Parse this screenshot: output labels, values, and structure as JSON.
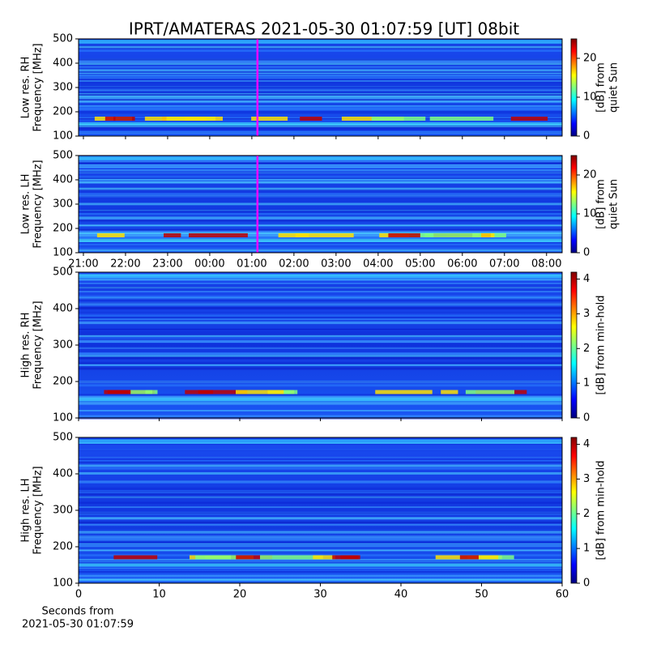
{
  "title": "IPRT/AMATERAS 2021-05-30 01:07:59 [UT]   08bit",
  "chart_data": [
    {
      "type": "spectrogram",
      "ylabel": [
        "Low res. RH",
        "Frequency [MHz]"
      ],
      "ylim": [
        100,
        500
      ],
      "yticks": [
        100,
        200,
        300,
        400,
        500
      ],
      "xlim": [
        20.885,
        32.37
      ],
      "sharex": true,
      "marker": 25.133,
      "marker_color": "#ff00ff",
      "colorbar": {
        "label": [
          "[dB] from",
          "quiet Sun"
        ],
        "lim": [
          0,
          25
        ],
        "ticks": [
          0,
          10,
          20
        ]
      }
    },
    {
      "type": "spectrogram",
      "ylabel": [
        "Low res. LH",
        "Frequency [MHz]"
      ],
      "ylim": [
        100,
        500
      ],
      "yticks": [
        100,
        200,
        300,
        400,
        500
      ],
      "xlim": [
        20.885,
        32.37
      ],
      "marker": 25.133,
      "marker_color": "#ff00ff",
      "xticks": [
        {
          "value": 21,
          "label": "21:00"
        },
        {
          "value": 22,
          "label": "22:00"
        },
        {
          "value": 23,
          "label": "23:00"
        },
        {
          "value": 24,
          "label": "00:00"
        },
        {
          "value": 25,
          "label": "01:00"
        },
        {
          "value": 26,
          "label": "02:00"
        },
        {
          "value": 27,
          "label": "03:00"
        },
        {
          "value": 28,
          "label": "04:00"
        },
        {
          "value": 29,
          "label": "05:00"
        },
        {
          "value": 30,
          "label": "06:00"
        },
        {
          "value": 31,
          "label": "07:00"
        },
        {
          "value": 32,
          "label": "08:00"
        }
      ],
      "colorbar": {
        "label": [
          "[dB] from",
          "quiet Sun"
        ],
        "lim": [
          0,
          25
        ],
        "ticks": [
          0,
          10,
          20
        ]
      }
    },
    {
      "type": "spectrogram",
      "ylabel": [
        "High res. RH",
        "Frequency [MHz]"
      ],
      "ylim": [
        100,
        500
      ],
      "yticks": [
        100,
        200,
        300,
        400,
        500
      ],
      "xlim": [
        0,
        60
      ],
      "sharex": true,
      "colorbar": {
        "label": [
          "[dB] from min-hold"
        ],
        "lim": [
          0,
          4.2
        ],
        "ticks": [
          0,
          1,
          2,
          3,
          4
        ]
      }
    },
    {
      "type": "spectrogram",
      "ylabel": [
        "High res. LH",
        "Frequency [MHz]"
      ],
      "ylim": [
        100,
        500
      ],
      "yticks": [
        100,
        200,
        300,
        400,
        500
      ],
      "xlim": [
        0,
        60
      ],
      "xticks": [
        0,
        10,
        20,
        30,
        40,
        50,
        60
      ],
      "xlabel": [
        "Seconds from",
        "2021-05-30 01:07:59"
      ],
      "colorbar": {
        "label": [
          "[dB] from min-hold"
        ],
        "lim": [
          0,
          4.2
        ],
        "ticks": [
          0,
          1,
          2,
          3,
          4
        ]
      }
    }
  ]
}
